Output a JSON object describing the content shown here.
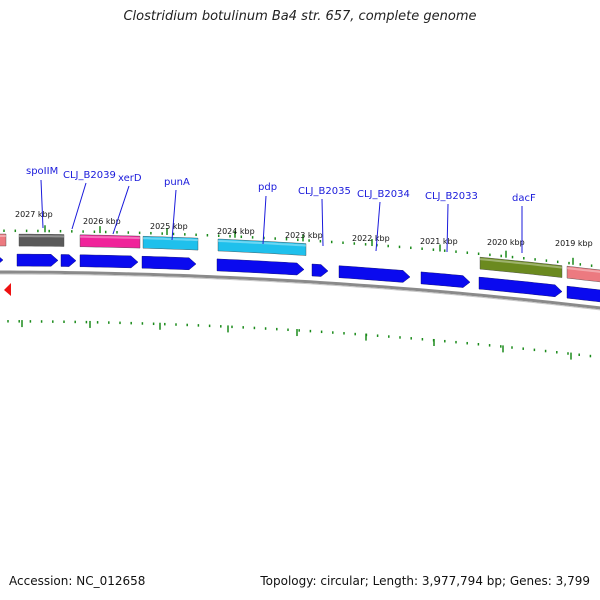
{
  "title": "Clostridium botulinum Ba4 str. 657, complete genome",
  "footer": {
    "accession": "Accession: NC_012658",
    "stats": "Topology: circular; Length: 3,977,794 bp; Genes: 3,799"
  },
  "kbp_ticks": [
    "2027 kbp",
    "2026 kbp",
    "2025 kbp",
    "2024 kbp",
    "2023 kbp",
    "2022 kbp",
    "2021 kbp",
    "2020 kbp",
    "2019 kbp"
  ],
  "gene_labels": [
    "spoIIM",
    "CLJ_B2039",
    "xerD",
    "punA",
    "pdp",
    "CLJ_B2035",
    "CLJ_B2034",
    "CLJ_B2033",
    "dacF"
  ],
  "colors": {
    "cds": "#0a0aef",
    "tick": "#1a8a1a",
    "backbone": "#8a8a8a",
    "label": "#1a1adb",
    "gray_feature": "#5a5a5a",
    "magenta_feature": "#f0239a",
    "cyan_feature": "#1fc0ec",
    "olive_feature": "#6b8a1f",
    "salmon_feature": "#ec7a80",
    "marker": "#ee1111"
  }
}
